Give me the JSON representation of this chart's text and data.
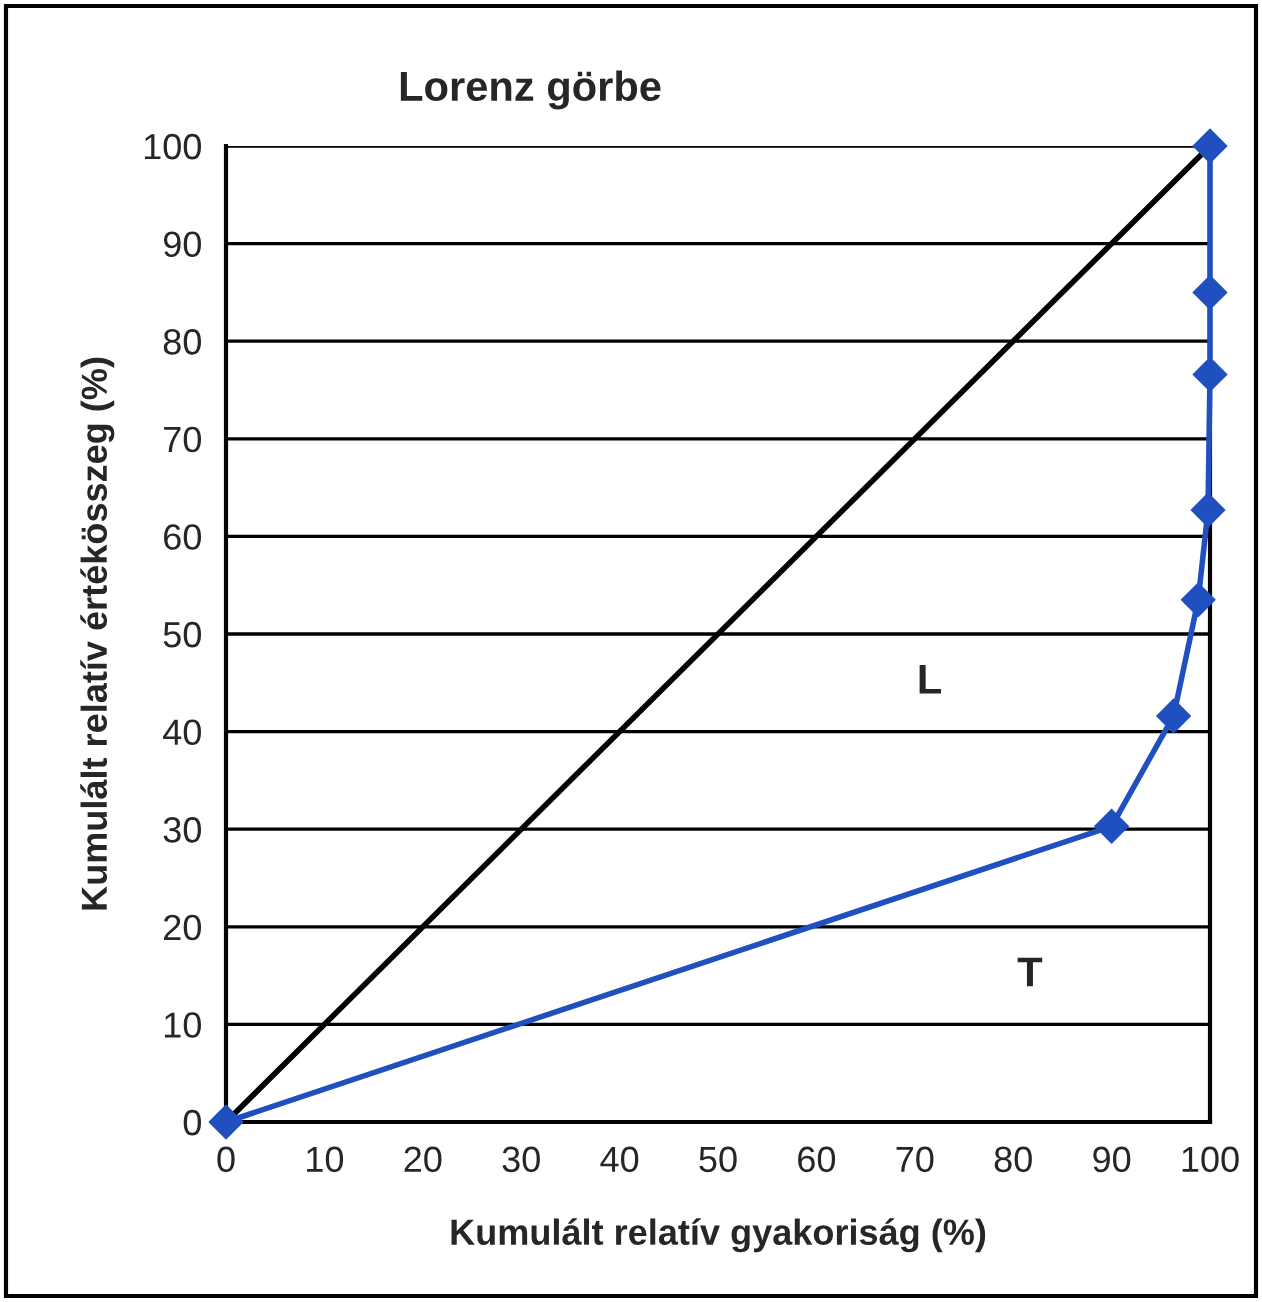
{
  "chart_data": {
    "type": "line",
    "title": "Lorenz görbe",
    "xlabel": "Kumulált relatív gyakoriság (%)",
    "ylabel": "Kumulált relatív értékösszeg (%)",
    "series": [
      {
        "x": [
          0,
          100
        ],
        "values": [
          0,
          100
        ],
        "color": "#000000",
        "marker": "none"
      },
      {
        "x": [
          0,
          90,
          96.3,
          98.8,
          99.8,
          100,
          100,
          100
        ],
        "values": [
          0,
          30.3,
          41.6,
          53.5,
          62.7,
          76.6,
          85,
          100
        ],
        "color": "#2050c0",
        "marker": "diamond"
      }
    ],
    "xlim": [
      0,
      100
    ],
    "ylim": [
      0,
      100
    ],
    "xticks": [
      0,
      10,
      20,
      30,
      40,
      50,
      60,
      70,
      80,
      90,
      100
    ],
    "yticks": [
      0,
      10,
      20,
      30,
      40,
      50,
      60,
      70,
      80,
      90,
      100
    ],
    "grid": "y",
    "line_style": "solid",
    "annotations": [
      "L",
      "T"
    ]
  }
}
